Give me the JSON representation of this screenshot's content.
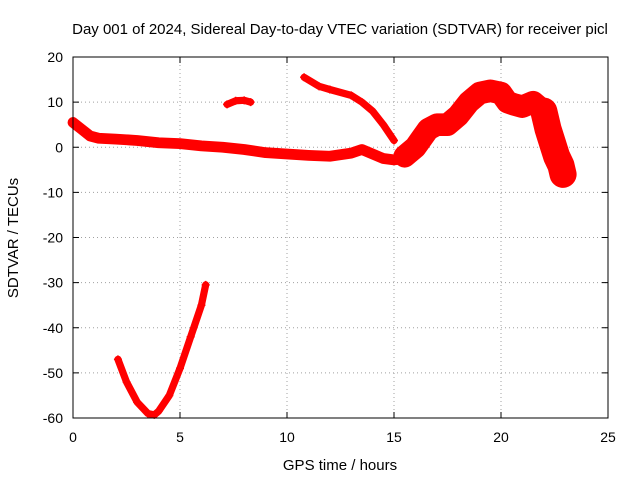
{
  "chart_data": {
    "type": "scatter",
    "title": "Day 001 of 2024, Sidereal Day-to-day VTEC variation (SDTVAR) for receiver picl",
    "xlabel": "GPS time / hours",
    "ylabel": "SDTVAR / TECUs",
    "xlim": [
      0,
      25
    ],
    "ylim": [
      -60,
      20
    ],
    "xticks": [
      0,
      5,
      10,
      15,
      20,
      25
    ],
    "yticks": [
      -60,
      -50,
      -40,
      -30,
      -20,
      -10,
      0,
      10,
      20
    ],
    "grid": true,
    "colors": {
      "series": "#ff0000",
      "grid": "#a0a0a0",
      "axis": "#000000"
    },
    "series": [
      {
        "name": "track-main",
        "band": 1.2,
        "x": [
          0,
          0.4,
          0.8,
          1.2,
          2,
          3,
          4,
          5,
          6,
          7,
          8,
          9,
          10,
          11,
          12,
          13,
          13.5,
          14,
          14.5,
          15,
          15.5
        ],
        "y": [
          5.5,
          4,
          2.5,
          2,
          1.8,
          1.5,
          1,
          0.8,
          0.3,
          0,
          -0.5,
          -1.2,
          -1.5,
          -1.8,
          -2,
          -1.3,
          -0.5,
          -1.5,
          -2.5,
          -2.8,
          -2.5
        ]
      },
      {
        "name": "track-rise",
        "band": 2.5,
        "x": [
          15.5,
          16,
          16.3,
          16.6,
          17,
          17.5,
          18,
          18.5,
          19,
          19.5,
          20,
          20.3,
          20.6,
          21,
          21.5,
          22
        ],
        "y": [
          -2,
          0,
          2,
          4,
          5,
          5,
          7,
          10,
          12,
          12.5,
          12,
          10,
          9.5,
          9,
          10,
          8
        ]
      },
      {
        "name": "track-tail",
        "band": 3,
        "x": [
          22,
          22.2,
          22.4,
          22.6,
          22.8,
          22.9
        ],
        "y": [
          8,
          4,
          1,
          -2,
          -4,
          -6
        ]
      },
      {
        "name": "track-upper-small",
        "band": 0.8,
        "x": [
          7.2,
          7.6,
          8,
          8.3
        ],
        "y": [
          9.5,
          10.3,
          10.4,
          10
        ]
      },
      {
        "name": "track-upper-arc",
        "band": 0.8,
        "x": [
          10.8,
          11.5,
          12,
          13,
          13.5,
          14,
          14.5,
          15
        ],
        "y": [
          15.5,
          13.5,
          12.8,
          11.5,
          10,
          8,
          5,
          1.5
        ]
      },
      {
        "name": "track-deep-dip",
        "band": 0.8,
        "x": [
          2.1,
          2.5,
          3,
          3.5,
          3.8,
          4,
          4.5,
          5,
          5.5,
          6,
          6.2
        ],
        "y": [
          -47,
          -52,
          -56.5,
          -59,
          -59.3,
          -58.5,
          -55,
          -49,
          -42,
          -35,
          -30.5
        ]
      }
    ]
  }
}
